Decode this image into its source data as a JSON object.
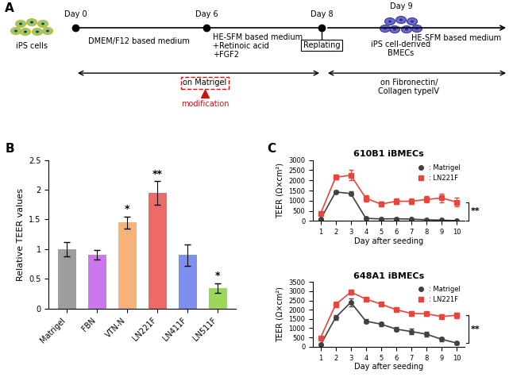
{
  "diagram": {
    "panel": "A",
    "start_label": "iPS cells",
    "days": [
      "Day 0",
      "Day 6",
      "Day 8",
      "Day 9"
    ],
    "stage1_medium": "DMEM/F12 based medium",
    "stage2_medium": [
      "HE-SFM based medium",
      "+Retinoic acid",
      "+FGF2"
    ],
    "replating": "Replating",
    "product": [
      "iPS cell-derived",
      "BMECs"
    ],
    "stage3_medium": "HE-SFM based medium",
    "coating1": "on Matrigel",
    "coating1_note": "modification",
    "coating2": [
      "on Fibronectin/",
      "Collagen typeIV"
    ]
  },
  "chart_data": [
    {
      "type": "bar",
      "panel": "B",
      "ylabel": "Relative TEER values",
      "categories": [
        "Matrigel",
        "FBN",
        "VTN-N",
        "LN221F",
        "LN411F",
        "LN511F"
      ],
      "values": [
        1,
        0.9,
        1.45,
        1.95,
        0.9,
        0.35
      ],
      "errors": [
        0.12,
        0.08,
        0.1,
        0.2,
        0.18,
        0.08
      ],
      "annotations": [
        null,
        null,
        "*",
        "**",
        null,
        "*"
      ],
      "colors": [
        "#9e9e9e",
        "#cc77ee",
        "#f7b27a",
        "#ee6a66",
        "#7f8ff0",
        "#9ad85a"
      ],
      "ylim": [
        0,
        2.5
      ],
      "yticks": [
        0,
        0.5,
        1,
        1.5,
        2,
        2.5
      ]
    },
    {
      "type": "line",
      "panel": "C",
      "title": "610B1 iBMECs",
      "xlabel": "Day after seeding",
      "ylabel": "TEER (Ω×cm²)",
      "x": [
        1,
        2,
        3,
        4,
        5,
        6,
        7,
        8,
        9,
        10
      ],
      "series": [
        {
          "name": ": Matrigel",
          "color": "#404040",
          "marker": "o",
          "line_style": "solid",
          "values": [
            80,
            1430,
            1350,
            130,
            100,
            110,
            90,
            60,
            40,
            20
          ],
          "errors": [
            20,
            60,
            100,
            30,
            20,
            20,
            20,
            15,
            10,
            10
          ]
        },
        {
          "name": ": LN221F",
          "color": "#e8453c",
          "marker": "s",
          "line_style": "solid",
          "values": [
            350,
            2150,
            2250,
            1120,
            830,
            970,
            970,
            1060,
            1130,
            930
          ],
          "errors": [
            50,
            120,
            250,
            150,
            130,
            120,
            120,
            150,
            200,
            200
          ]
        }
      ],
      "significance": "**",
      "legend": "upper right",
      "xlim": [
        0.5,
        10.5
      ],
      "xticks": [
        1,
        2,
        3,
        4,
        5,
        6,
        7,
        8,
        9,
        10
      ],
      "ylim": [
        0,
        3000
      ],
      "yticks": [
        0,
        500,
        1000,
        1500,
        2000,
        2500,
        3000
      ]
    },
    {
      "type": "line",
      "title": "648A1 iBMECs",
      "xlabel": "Day after seeding",
      "ylabel": "TEER (Ω×cm²)",
      "x": [
        1,
        2,
        3,
        4,
        5,
        6,
        7,
        8,
        9,
        10
      ],
      "series": [
        {
          "name": ": Matrigel",
          "color": "#404040",
          "marker": "o",
          "line_style": "solid",
          "values": [
            100,
            1580,
            2400,
            1380,
            1220,
            950,
            820,
            680,
            400,
            200
          ],
          "errors": [
            30,
            120,
            200,
            120,
            100,
            120,
            150,
            130,
            100,
            60
          ]
        },
        {
          "name": ": LN221F",
          "color": "#e8453c",
          "marker": "s",
          "line_style": "solid",
          "values": [
            480,
            2280,
            2950,
            2580,
            2300,
            2000,
            1800,
            1780,
            1630,
            1700
          ],
          "errors": [
            50,
            150,
            120,
            80,
            80,
            90,
            120,
            110,
            100,
            150
          ]
        }
      ],
      "significance": "**",
      "legend": "upper right",
      "xlim": [
        0.5,
        10.5
      ],
      "xticks": [
        1,
        2,
        3,
        4,
        5,
        6,
        7,
        8,
        9,
        10
      ],
      "ylim": [
        0,
        3500
      ],
      "yticks": [
        0,
        500,
        1000,
        1500,
        2000,
        2500,
        3000,
        3500
      ]
    }
  ]
}
